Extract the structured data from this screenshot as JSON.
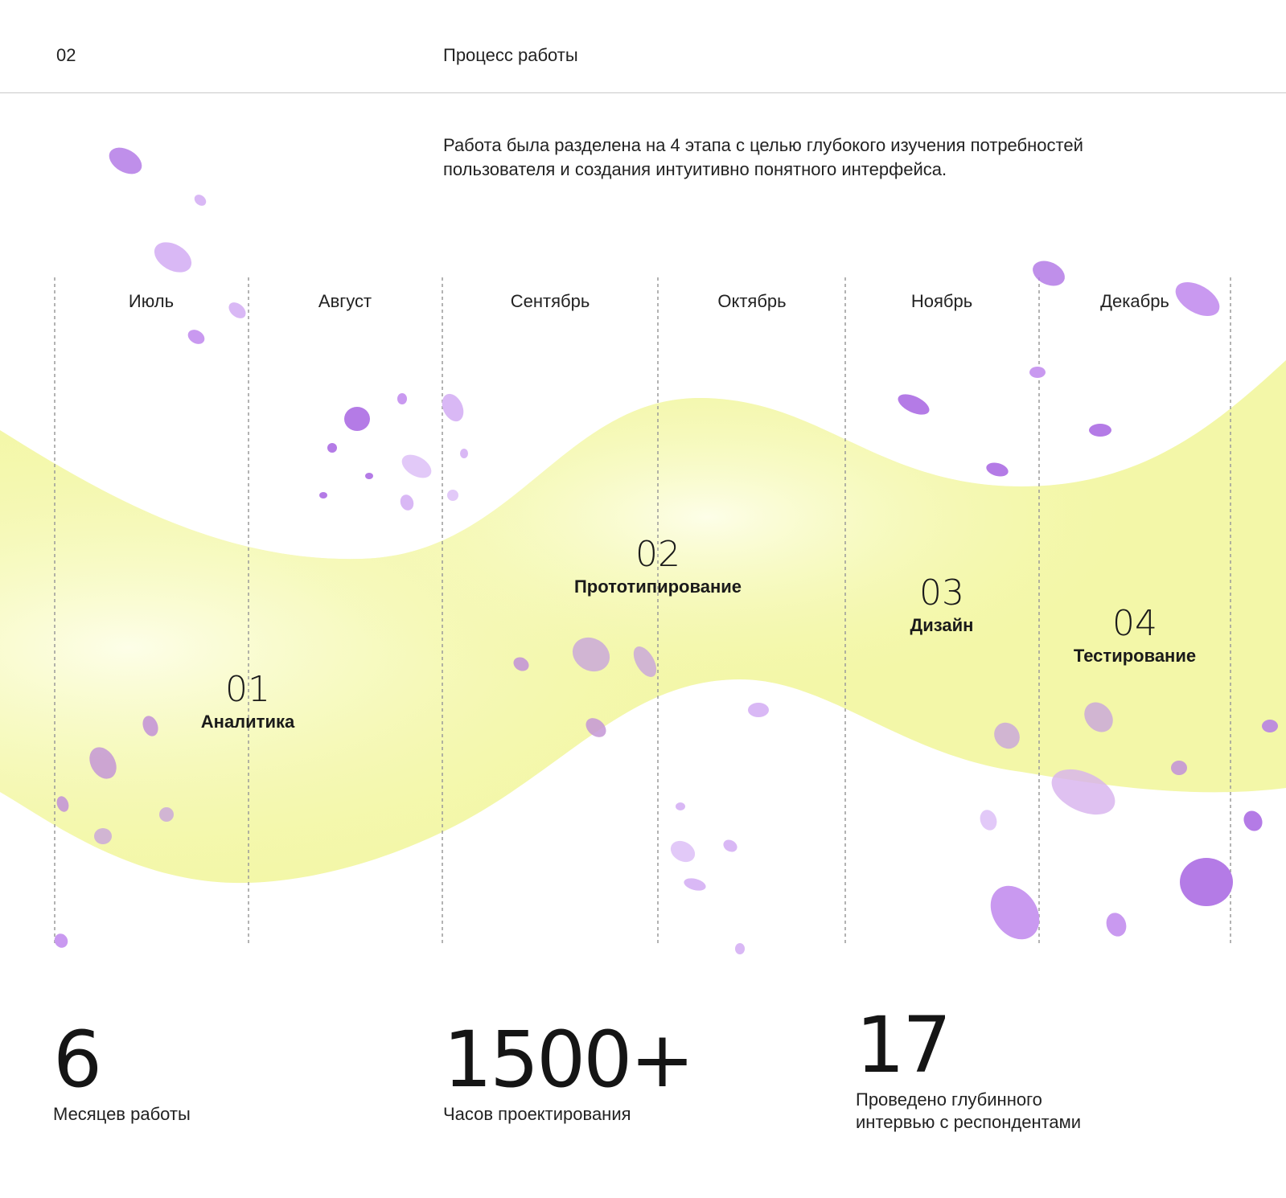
{
  "header": {
    "section_number": "02",
    "section_title": "Процесс работы"
  },
  "intro": {
    "line1": "Работа была разделена на 4 этапа с целью глубокого изучения потребностей",
    "line2": "пользователя и создания интуитивно понятного интерфейса."
  },
  "timeline": {
    "months": [
      "Июль",
      "Август",
      "Сентябрь",
      "Октябрь",
      "Ноябрь",
      "Декабрь"
    ],
    "phases": [
      {
        "number": "01",
        "name": "Аналитика"
      },
      {
        "number": "02",
        "name": "Прототипирование"
      },
      {
        "number": "03",
        "name": "Дизайн"
      },
      {
        "number": "04",
        "name": "Тестирование"
      }
    ]
  },
  "stats": [
    {
      "value": "6",
      "label_line1": "Месяцев работы",
      "label_line2": ""
    },
    {
      "value": "1500+",
      "label_line1": "Часов проектирования",
      "label_line2": ""
    },
    {
      "value": "17",
      "label_line1": "Проведено глубинного",
      "label_line2": "интервью с респондентами"
    }
  ],
  "colors": {
    "wave": "#f3f7a8",
    "wave_light": "#fbfde0",
    "dot_dark": "#b47be6",
    "dot_light": "#d9b8f5",
    "divider": "#9a9a9a"
  }
}
